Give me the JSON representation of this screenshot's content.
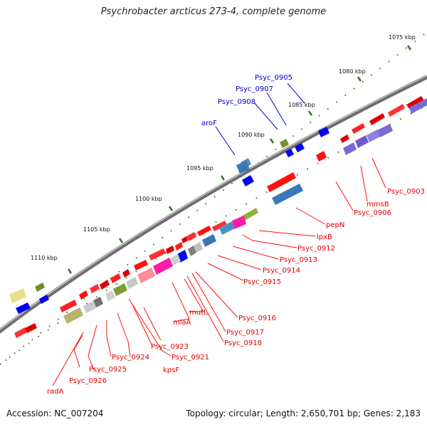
{
  "title": "Psychrobacter arcticus 273-4, complete genome",
  "footer": {
    "accession": "Accession: NC_007204",
    "summary": "Topology: circular; Length: 2,650,701 bp; Genes: 2,183"
  },
  "colors": {
    "label_red": "#e00000",
    "label_blue": "#0000cc",
    "tick_green": "#2a7a1a",
    "backbone": "#7a7a7a"
  },
  "map": {
    "tick_labels": [
      "1075 kbp",
      "1080 kbp",
      "1085 kbp",
      "1090 kbp",
      "1095 kbp",
      "1100 kbp",
      "1105 kbp",
      "1110 kbp"
    ],
    "red_labels": [
      "Psyc_0903",
      "mmsB",
      "Psyc_0906",
      "pepN",
      "lpxB",
      "Psyc_0912",
      "Psyc_0913",
      "Psyc_0914",
      "Psyc_0915",
      "Psyc_0916",
      "Psyc_0917",
      "Psyc_0918",
      "mutL",
      "miaA",
      "Psyc_0921",
      "Psyc_0923",
      "kpsF",
      "Psyc_0924",
      "Psyc_0925",
      "Psyc_0926",
      "radA"
    ],
    "blue_labels": [
      "Psyc_0905",
      "Psyc_0907",
      "Psyc_0908",
      "aroF"
    ]
  }
}
